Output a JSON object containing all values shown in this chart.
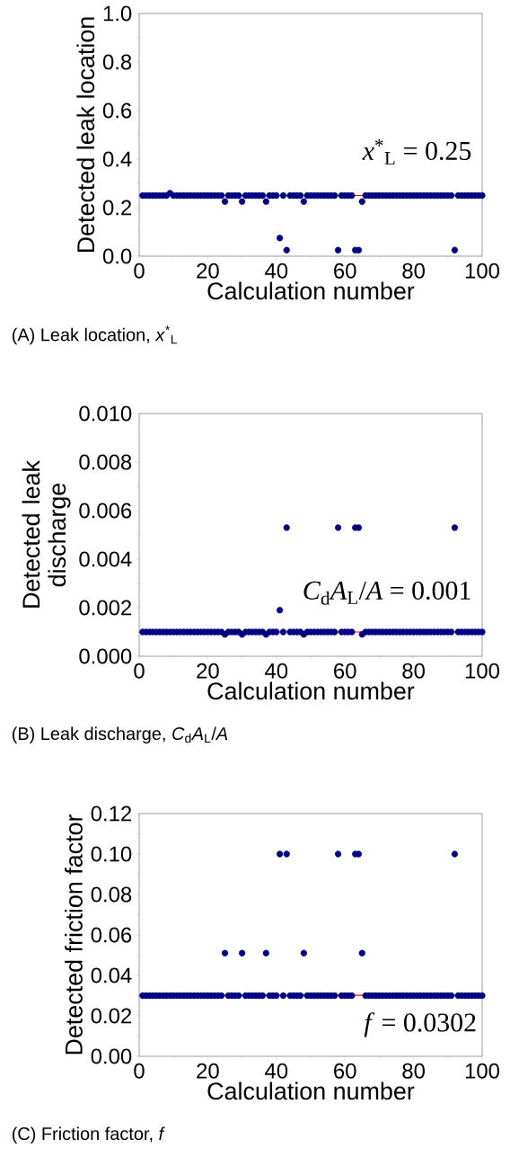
{
  "chart_data": [
    {
      "type": "scatter",
      "xlabel": "Calculation number",
      "ylabel": "Detected leak location",
      "xlim": [
        0,
        100
      ],
      "ylim": [
        0,
        1
      ],
      "xticks": [
        0,
        20,
        40,
        60,
        80,
        100
      ],
      "yticks": [
        {
          "value": 0,
          "label": "0.0"
        },
        {
          "value": 0.2,
          "label": "0.2"
        },
        {
          "value": 0.4,
          "label": "0.4"
        },
        {
          "value": 0.6,
          "label": "0.6"
        },
        {
          "value": 0.8,
          "label": "0.8"
        },
        {
          "value": 1,
          "label": "1.0"
        }
      ],
      "x": [
        1,
        2,
        3,
        4,
        5,
        6,
        7,
        8,
        9,
        10,
        11,
        12,
        13,
        14,
        15,
        16,
        17,
        18,
        19,
        20,
        21,
        22,
        23,
        24,
        25,
        26,
        27,
        28,
        29,
        30,
        31,
        32,
        33,
        34,
        35,
        36,
        37,
        38,
        39,
        40,
        41,
        42,
        43,
        44,
        45,
        46,
        47,
        48,
        49,
        50,
        51,
        52,
        53,
        54,
        55,
        56,
        57,
        58,
        59,
        60,
        61,
        62,
        63,
        64,
        65,
        66,
        67,
        68,
        69,
        70,
        71,
        72,
        73,
        74,
        75,
        76,
        77,
        78,
        79,
        80,
        81,
        82,
        83,
        84,
        85,
        86,
        87,
        88,
        89,
        90,
        91,
        92,
        93,
        94,
        95,
        96,
        97,
        98,
        99,
        100
      ],
      "series": [
        {
          "color": "#000080",
          "values": [
            0.25,
            0.25,
            0.25,
            0.25,
            0.25,
            0.25,
            0.25,
            0.25,
            0.26,
            0.25,
            0.25,
            0.25,
            0.25,
            0.25,
            0.25,
            0.25,
            0.25,
            0.25,
            0.25,
            0.25,
            0.25,
            0.25,
            0.25,
            0.25,
            0.225,
            0.25,
            0.25,
            0.25,
            0.25,
            0.225,
            0.25,
            0.25,
            0.25,
            0.25,
            0.25,
            0.25,
            0.225,
            0.25,
            0.25,
            0.25,
            0.075,
            0.25,
            0.025,
            0.25,
            0.25,
            0.25,
            0.25,
            0.225,
            0.25,
            0.25,
            0.25,
            0.25,
            0.25,
            0.25,
            0.25,
            0.25,
            0.25,
            0.025,
            0.25,
            0.25,
            0.25,
            0.25,
            0.025,
            0.025,
            0.225,
            0.25,
            0.25,
            0.25,
            0.25,
            0.25,
            0.25,
            0.25,
            0.25,
            0.25,
            0.25,
            0.25,
            0.25,
            0.25,
            0.25,
            0.25,
            0.25,
            0.25,
            0.25,
            0.25,
            0.25,
            0.25,
            0.25,
            0.25,
            0.25,
            0.25,
            0.25,
            0.025,
            0.25,
            0.25,
            0.25,
            0.25,
            0.25,
            0.25,
            0.25,
            0.25
          ]
        }
      ],
      "ref_lines": [
        {
          "axis": "y",
          "value": 0.25,
          "label": "*x*$^{*}$$_{L}$ = 0.25",
          "color": "#ff0000"
        }
      ],
      "annotations": [
        "(A) Leak location, *x*$^{*}$$_{L}$"
      ]
    },
    {
      "type": "scatter",
      "xlabel": "Calculation number",
      "ylabel": "Detected leak discharge",
      "xlim": [
        0,
        100
      ],
      "ylim": [
        0,
        0.01
      ],
      "xticks": [
        0,
        20,
        40,
        60,
        80,
        100
      ],
      "yticks": [
        {
          "value": 0,
          "label": "0.000"
        },
        {
          "value": 0.002,
          "label": "0.002"
        },
        {
          "value": 0.004,
          "label": "0.004"
        },
        {
          "value": 0.006,
          "label": "0.006"
        },
        {
          "value": 0.008,
          "label": "0.008"
        },
        {
          "value": 0.01,
          "label": "0.010"
        }
      ],
      "x": [
        1,
        2,
        3,
        4,
        5,
        6,
        7,
        8,
        9,
        10,
        11,
        12,
        13,
        14,
        15,
        16,
        17,
        18,
        19,
        20,
        21,
        22,
        23,
        24,
        25,
        26,
        27,
        28,
        29,
        30,
        31,
        32,
        33,
        34,
        35,
        36,
        37,
        38,
        39,
        40,
        41,
        42,
        43,
        44,
        45,
        46,
        47,
        48,
        49,
        50,
        51,
        52,
        53,
        54,
        55,
        56,
        57,
        58,
        59,
        60,
        61,
        62,
        63,
        64,
        65,
        66,
        67,
        68,
        69,
        70,
        71,
        72,
        73,
        74,
        75,
        76,
        77,
        78,
        79,
        80,
        81,
        82,
        83,
        84,
        85,
        86,
        87,
        88,
        89,
        90,
        91,
        92,
        93,
        94,
        95,
        96,
        97,
        98,
        99,
        100
      ],
      "series": [
        {
          "color": "#000080",
          "values": [
            0.001,
            0.001,
            0.001,
            0.001,
            0.001,
            0.001,
            0.001,
            0.001,
            0.001,
            0.001,
            0.001,
            0.001,
            0.001,
            0.001,
            0.001,
            0.001,
            0.001,
            0.001,
            0.001,
            0.001,
            0.001,
            0.001,
            0.001,
            0.001,
            0.0009,
            0.001,
            0.001,
            0.001,
            0.001,
            0.0009,
            0.001,
            0.001,
            0.001,
            0.001,
            0.001,
            0.001,
            0.0009,
            0.001,
            0.001,
            0.001,
            0.0019,
            0.001,
            0.0053,
            0.001,
            0.001,
            0.001,
            0.001,
            0.0009,
            0.001,
            0.001,
            0.001,
            0.001,
            0.001,
            0.001,
            0.001,
            0.001,
            0.001,
            0.0053,
            0.001,
            0.001,
            0.001,
            0.001,
            0.0053,
            0.0053,
            0.0009,
            0.001,
            0.001,
            0.001,
            0.001,
            0.001,
            0.001,
            0.001,
            0.001,
            0.001,
            0.001,
            0.001,
            0.001,
            0.001,
            0.001,
            0.001,
            0.001,
            0.001,
            0.001,
            0.001,
            0.001,
            0.001,
            0.001,
            0.001,
            0.001,
            0.001,
            0.001,
            0.0053,
            0.001,
            0.001,
            0.001,
            0.001,
            0.001,
            0.001,
            0.001,
            0.001
          ]
        }
      ],
      "ref_lines": [
        {
          "axis": "y",
          "value": 0.001,
          "label": "*C*$_{d}$*A*$_{L}$/*A* = 0.001",
          "color": "#ff0000"
        }
      ],
      "annotations": [
        "(B) Leak discharge, *C*$_{d}$*A*$_{L}$/*A*"
      ]
    },
    {
      "type": "scatter",
      "xlabel": "Calculation number",
      "ylabel": "Detected friction factor",
      "xlim": [
        0,
        100
      ],
      "ylim": [
        0,
        0.12
      ],
      "xticks": [
        0,
        20,
        40,
        60,
        80,
        100
      ],
      "yticks": [
        {
          "value": 0,
          "label": "0.00"
        },
        {
          "value": 0.02,
          "label": "0.02"
        },
        {
          "value": 0.04,
          "label": "0.04"
        },
        {
          "value": 0.06,
          "label": "0.06"
        },
        {
          "value": 0.08,
          "label": "0.08"
        },
        {
          "value": 0.1,
          "label": "0.10"
        },
        {
          "value": 0.12,
          "label": "0.12"
        }
      ],
      "x": [
        1,
        2,
        3,
        4,
        5,
        6,
        7,
        8,
        9,
        10,
        11,
        12,
        13,
        14,
        15,
        16,
        17,
        18,
        19,
        20,
        21,
        22,
        23,
        24,
        25,
        26,
        27,
        28,
        29,
        30,
        31,
        32,
        33,
        34,
        35,
        36,
        37,
        38,
        39,
        40,
        41,
        42,
        43,
        44,
        45,
        46,
        47,
        48,
        49,
        50,
        51,
        52,
        53,
        54,
        55,
        56,
        57,
        58,
        59,
        60,
        61,
        62,
        63,
        64,
        65,
        66,
        67,
        68,
        69,
        70,
        71,
        72,
        73,
        74,
        75,
        76,
        77,
        78,
        79,
        80,
        81,
        82,
        83,
        84,
        85,
        86,
        87,
        88,
        89,
        90,
        91,
        92,
        93,
        94,
        95,
        96,
        97,
        98,
        99,
        100
      ],
      "series": [
        {
          "color": "#000080",
          "values": [
            0.03,
            0.03,
            0.03,
            0.03,
            0.03,
            0.03,
            0.03,
            0.03,
            0.03,
            0.03,
            0.03,
            0.03,
            0.03,
            0.03,
            0.03,
            0.03,
            0.03,
            0.03,
            0.03,
            0.03,
            0.03,
            0.03,
            0.03,
            0.03,
            0.051,
            0.03,
            0.03,
            0.03,
            0.03,
            0.051,
            0.03,
            0.03,
            0.03,
            0.03,
            0.03,
            0.03,
            0.051,
            0.03,
            0.03,
            0.03,
            0.1,
            0.03,
            0.1,
            0.03,
            0.03,
            0.03,
            0.03,
            0.051,
            0.03,
            0.03,
            0.03,
            0.03,
            0.03,
            0.03,
            0.03,
            0.03,
            0.03,
            0.1,
            0.03,
            0.03,
            0.03,
            0.03,
            0.1,
            0.1,
            0.051,
            0.03,
            0.03,
            0.03,
            0.03,
            0.03,
            0.03,
            0.03,
            0.03,
            0.03,
            0.03,
            0.03,
            0.03,
            0.03,
            0.03,
            0.03,
            0.03,
            0.03,
            0.03,
            0.03,
            0.03,
            0.03,
            0.03,
            0.03,
            0.03,
            0.03,
            0.03,
            0.1,
            0.03,
            0.03,
            0.03,
            0.03,
            0.03,
            0.03,
            0.03,
            0.03
          ]
        }
      ],
      "ref_lines": [
        {
          "axis": "y",
          "value": 0.0302,
          "label": "*f* = 0.0302",
          "color": "#ff0000"
        }
      ],
      "annotations": [
        "(C) Friction factor, *f*"
      ]
    }
  ]
}
